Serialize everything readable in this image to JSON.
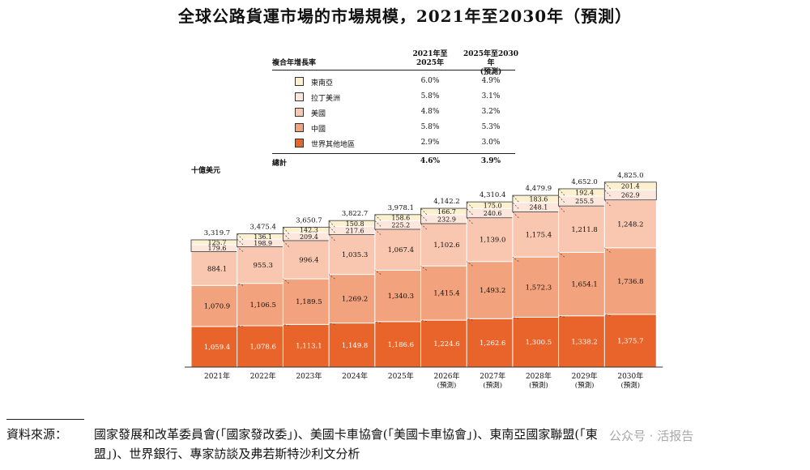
{
  "title": "全球公路貨運市場的市場規模，2021年至2030年（預測）",
  "legend": {
    "header_label": "複合年增長率",
    "col1_header": [
      "2021年至",
      "2025年"
    ],
    "col2_header": [
      "2025年至2030年",
      "(預測)"
    ],
    "rows": [
      {
        "label": "東南亞",
        "cagr_2021_2025": "6.0%",
        "cagr_2025_2030": "4.9%",
        "color": "#fdf0cf"
      },
      {
        "label": "拉丁美洲",
        "cagr_2021_2025": "5.8%",
        "cagr_2025_2030": "3.1%",
        "color": "#fde6dc"
      },
      {
        "label": "美國",
        "cagr_2021_2025": "4.8%",
        "cagr_2025_2030": "3.2%",
        "color": "#f9c7b0"
      },
      {
        "label": "中國",
        "cagr_2021_2025": "5.8%",
        "cagr_2025_2030": "5.3%",
        "color": "#f2a27c"
      },
      {
        "label": "世界其他地區",
        "cagr_2021_2025": "2.9%",
        "cagr_2025_2030": "3.0%",
        "color": "#e8642a"
      }
    ],
    "total": {
      "label": "總計",
      "cagr_2021_2025": "4.6%",
      "cagr_2025_2030": "3.9%"
    }
  },
  "chart_data": {
    "type": "bar",
    "stacked": true,
    "unit": "十億美元",
    "categories": [
      "2021年",
      "2022年",
      "2023年",
      "2024年",
      "2025年",
      "2026年",
      "2027年",
      "2028年",
      "2029年",
      "2030年"
    ],
    "category_notes": [
      "",
      "",
      "",
      "",
      "",
      "(預測)",
      "(預測)",
      "(預測)",
      "(預測)",
      "(預測)"
    ],
    "series": [
      {
        "name": "世界其他地區",
        "color": "#e8642a",
        "label_color": "#ffffff",
        "values": [
          1059.4,
          1078.6,
          1113.1,
          1149.8,
          1186.6,
          1224.6,
          1262.6,
          1300.5,
          1338.2,
          1375.7
        ]
      },
      {
        "name": "中國",
        "color": "#f2a27c",
        "label_color": "#111111",
        "values": [
          1070.9,
          1106.5,
          1189.5,
          1269.2,
          1340.3,
          1415.4,
          1493.2,
          1572.3,
          1654.1,
          1736.8
        ]
      },
      {
        "name": "美國",
        "color": "#f9c7b0",
        "label_color": "#111111",
        "values": [
          884.1,
          955.3,
          996.4,
          1035.3,
          1067.4,
          1102.6,
          1139.0,
          1175.4,
          1211.8,
          1248.2
        ]
      },
      {
        "name": "拉丁美洲",
        "color": "#fde6dc",
        "label_color": "#111111",
        "values": [
          179.6,
          198.9,
          209.4,
          217.6,
          225.2,
          232.9,
          240.6,
          248.1,
          255.5,
          262.9
        ]
      },
      {
        "name": "東南亞",
        "color": "#fdf0cf",
        "label_color": "#111111",
        "values": [
          125.7,
          136.1,
          142.3,
          150.8,
          158.6,
          166.7,
          175.0,
          183.6,
          192.4,
          201.4
        ]
      }
    ],
    "totals": [
      3319.7,
      3475.4,
      3650.7,
      3822.7,
      3978.1,
      4142.2,
      4310.4,
      4479.9,
      4652.0,
      4825.0
    ],
    "value_labels": {
      "series": [
        [
          "1,059.4",
          "1,078.6",
          "1,113.1",
          "1,149.8",
          "1,186.6",
          "1,224.6",
          "1,262.6",
          "1,300.5",
          "1,338.2",
          "1,375.7"
        ],
        [
          "1,070.9",
          "1,106.5",
          "1,189.5",
          "1,269.2",
          "1,340.3",
          "1,415.4",
          "1,493.2",
          "1,572.3",
          "1,654.1",
          "1,736.8"
        ],
        [
          "884.1",
          "955.3",
          "996.4",
          "1,035.3",
          "1,067.4",
          "1,102.6",
          "1,139.0",
          "1,175.4",
          "1,211.8",
          "1,248.2"
        ],
        [
          "179.6",
          "198.9",
          "209.4",
          "217.6",
          "225.2",
          "232.9",
          "240.6",
          "248.1",
          "255.5",
          "262.9"
        ],
        [
          "125.7",
          "136.1",
          "142.3",
          "150.8",
          "158.6",
          "166.7",
          "175.0",
          "183.6",
          "192.4",
          "201.4"
        ]
      ],
      "totals": [
        "3,319.7",
        "3,475.4",
        "3,650.7",
        "3,822.7",
        "3,978.1",
        "4,142.2",
        "4,310.4",
        "4,479.9",
        "4,652.0",
        "4,825.0"
      ]
    }
  },
  "source": {
    "label": "資料來源：",
    "text_line1": "國家發展和改革委員會(「國家發改委」)、美國卡車協會(「美國卡車協會」)、東南亞國家聯盟(「東",
    "text_line2": "盟」)、世界銀行、專家訪談及弗若斯特沙利文分析"
  },
  "watermark": "公众号 · 活报告"
}
